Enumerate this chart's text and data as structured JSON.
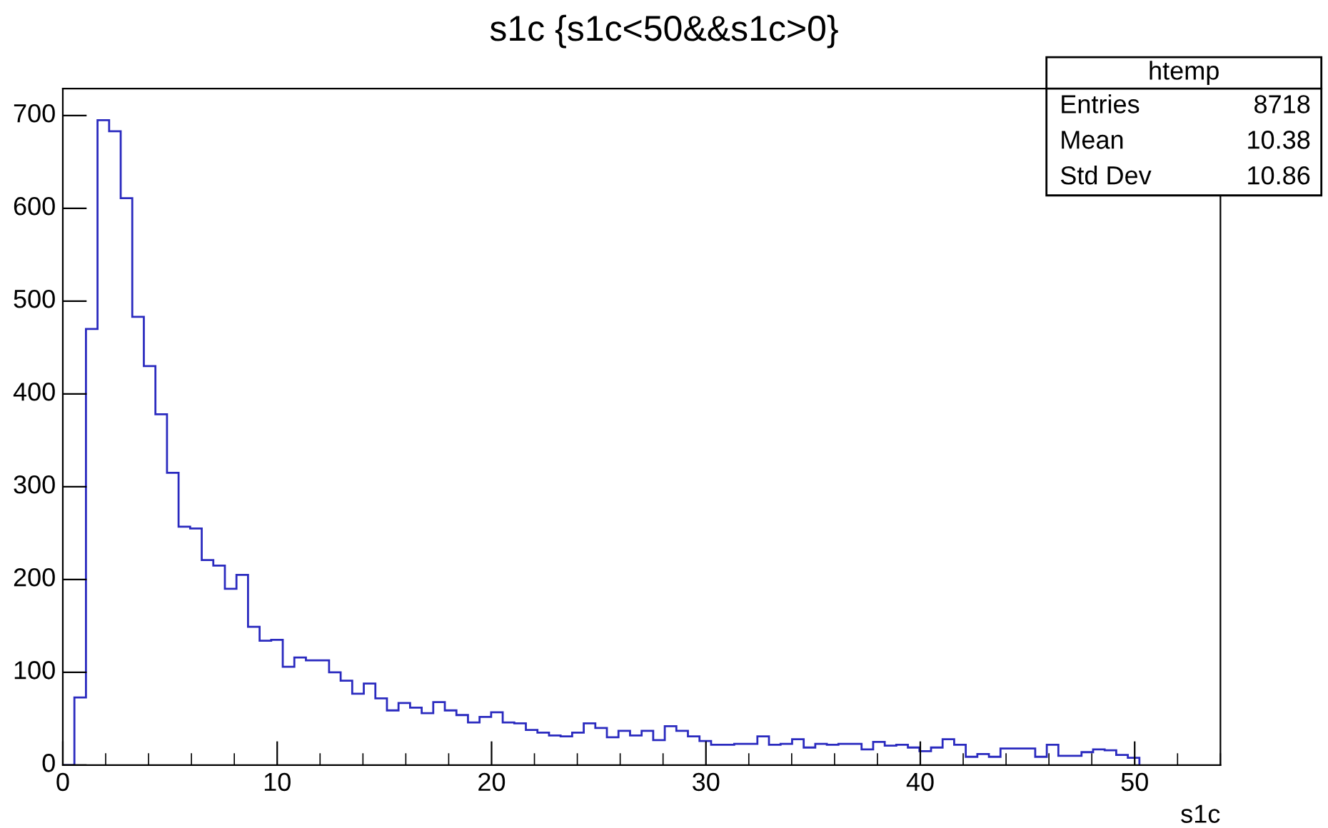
{
  "chart_data": {
    "type": "histogram",
    "title": "s1c {s1c<50&&s1c>0}",
    "xlabel": "s1c",
    "annotations": [
      "htemp",
      "Entries",
      "8718",
      "Mean",
      "10.38",
      "Std Dev",
      "10.86"
    ],
    "bins": [
      0,
      0.54,
      1.08,
      1.62,
      2.16,
      2.7,
      3.24,
      3.78,
      4.32,
      4.86,
      5.4,
      5.94,
      6.48,
      7.02,
      7.56,
      8.1,
      8.64,
      9.18,
      9.72,
      10.26,
      10.8,
      11.34,
      11.88,
      12.42,
      12.96,
      13.5,
      14.04,
      14.58,
      15.12,
      15.66,
      16.2,
      16.74,
      17.28,
      17.82,
      18.36,
      18.9,
      19.44,
      19.98,
      20.52,
      21.06,
      21.6,
      22.14,
      22.68,
      23.22,
      23.76,
      24.3,
      24.84,
      25.38,
      25.92,
      26.46,
      27,
      27.54,
      28.08,
      28.62,
      29.16,
      29.7,
      30.24,
      30.78,
      31.32,
      31.86,
      32.4,
      32.94,
      33.48,
      34.02,
      34.56,
      35.1,
      35.64,
      36.18,
      36.72,
      37.26,
      37.8,
      38.34,
      38.88,
      39.42,
      39.96,
      40.5,
      41.04,
      41.58,
      42.12,
      42.66,
      43.2,
      43.74,
      44.28,
      44.82,
      45.36,
      45.9,
      46.44,
      46.98,
      47.52,
      48.06,
      48.6,
      49.14,
      49.68,
      50.22
    ],
    "values": [
      0,
      73,
      470,
      695,
      683,
      611,
      483,
      430,
      378,
      315,
      257,
      255,
      221,
      215,
      190,
      205,
      149,
      134,
      135,
      106,
      116,
      113,
      113,
      100,
      91,
      77,
      88,
      72,
      59,
      67,
      62,
      56,
      68,
      59,
      54,
      46,
      52,
      57,
      46,
      45,
      38,
      35,
      32,
      31,
      35,
      45,
      40,
      30,
      37,
      32,
      37,
      27,
      42,
      37,
      31,
      26,
      22,
      22,
      23,
      23,
      31,
      22,
      23,
      28,
      19,
      23,
      22,
      23,
      23,
      17,
      25,
      21,
      22,
      19,
      15,
      19,
      28,
      22,
      9,
      12,
      9,
      18,
      18,
      18,
      9,
      22,
      10,
      10,
      14,
      17,
      16,
      11,
      8
    ],
    "color": "#2a2abf",
    "xlim": [
      0,
      54
    ],
    "xticks": [
      0,
      10,
      20,
      30,
      40,
      50
    ],
    "ylim": [
      0,
      729
    ],
    "yticks": [
      0,
      100,
      200,
      300,
      400,
      500,
      600,
      700
    ],
    "grid": false
  }
}
